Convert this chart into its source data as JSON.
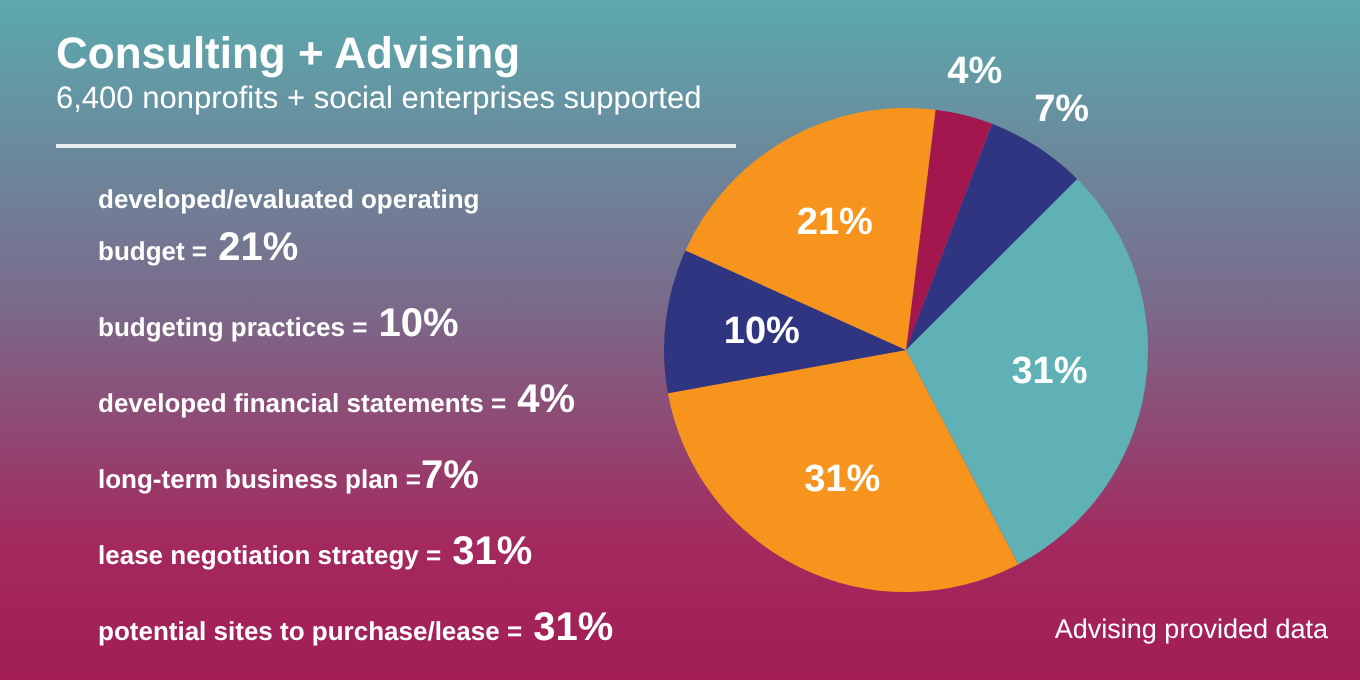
{
  "chart_data": {
    "type": "pie",
    "title": "Consulting + Advising",
    "subtitle": "6,400 nonprofits + social enterprises supported",
    "annotations": [
      "developed/evaluated operating budget = 21%",
      "budgeting practices = 10%",
      "developed financial statements = 4%",
      "long-term business plan =7%",
      "lease negotiation strategy = 31%",
      "potential sites to purchase/lease = 31%",
      "Advising provided data"
    ],
    "categories": [
      null,
      null,
      null,
      null,
      null,
      null
    ],
    "values": [
      4,
      7,
      31,
      31,
      10,
      21
    ],
    "value_labels": [
      "4%",
      "7%",
      "31%",
      "31%",
      "10%",
      "21%"
    ],
    "colors": [
      "#a3164e",
      "#2f3580",
      "#5fb1b5",
      "#f7941d",
      "#2f3580",
      "#f7941d"
    ]
  }
}
